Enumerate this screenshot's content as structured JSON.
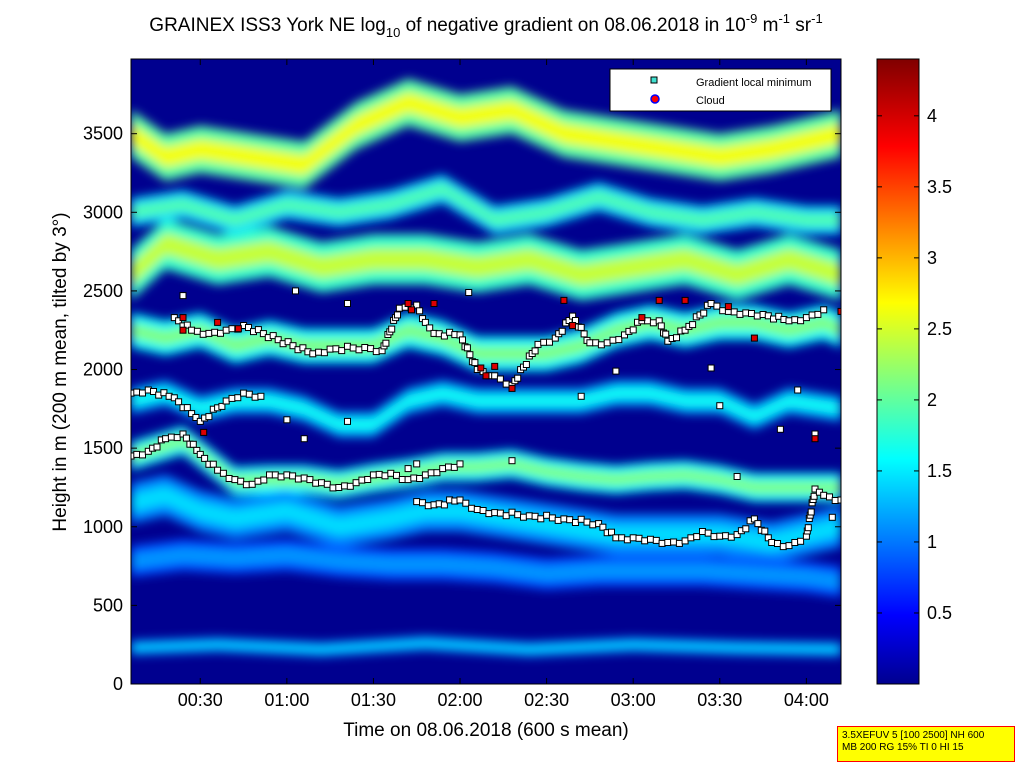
{
  "chart_data": {
    "type": "heatmap",
    "title_parts": {
      "a": "GRAINEX ISS3 York NE log",
      "a_sub": "10",
      "b": " of negative gradient on 08.06.2018 in 10",
      "b_sup": "-9",
      "c": " m",
      "c_sup": "-1",
      "d": " sr",
      "d_sup": "-1"
    },
    "xlabel": "Time on 08.06.2018 (600 s mean)",
    "ylabel": "Height in m (200 m mean, tilted by 3°)",
    "xlim_hours": [
      0.1,
      4.2
    ],
    "ylim": [
      0,
      3975
    ],
    "xticks": [
      {
        "t": 0.5,
        "label": "00:30"
      },
      {
        "t": 1.0,
        "label": "01:00"
      },
      {
        "t": 1.5,
        "label": "01:30"
      },
      {
        "t": 2.0,
        "label": "02:00"
      },
      {
        "t": 2.5,
        "label": "02:30"
      },
      {
        "t": 3.0,
        "label": "03:00"
      },
      {
        "t": 3.5,
        "label": "03:30"
      },
      {
        "t": 4.0,
        "label": "04:00"
      }
    ],
    "yticks": [
      0,
      500,
      1000,
      1500,
      2000,
      2500,
      3000,
      3500
    ],
    "colorbar": {
      "range": [
        0,
        4.4
      ],
      "ticks": [
        0.5,
        1,
        1.5,
        2,
        2.5,
        3,
        3.5,
        4
      ],
      "tick_labels": [
        "0.5",
        "1",
        "1.5",
        "2",
        "2.5",
        "3",
        "3.5",
        "4"
      ],
      "colormap": "jet"
    },
    "legend": {
      "placement": "top-right",
      "entries": [
        {
          "label": "Gradient local minimum",
          "marker": "square",
          "color": "#40e0d0"
        },
        {
          "label": "Cloud",
          "marker": "circle",
          "color": "#ff0000",
          "edge": "#0000ff"
        }
      ]
    },
    "series": [
      {
        "name": "Gradient local minimum",
        "layers": [
          {
            "points": [
              [
                0.1,
                1450
              ],
              [
                0.2,
                1480
              ],
              [
                0.3,
                1560
              ],
              [
                0.4,
                1590
              ],
              [
                0.5,
                1460
              ],
              [
                0.6,
                1360
              ],
              [
                0.7,
                1300
              ],
              [
                0.8,
                1270
              ],
              [
                0.9,
                1330
              ],
              [
                1.0,
                1330
              ],
              [
                1.1,
                1310
              ],
              [
                1.2,
                1280
              ],
              [
                1.3,
                1250
              ],
              [
                1.4,
                1280
              ],
              [
                1.5,
                1330
              ],
              [
                1.6,
                1340
              ],
              [
                1.7,
                1300
              ],
              [
                1.8,
                1330
              ],
              [
                1.9,
                1370
              ],
              [
                2.0,
                1400
              ]
            ]
          },
          {
            "points": [
              [
                1.75,
                1160
              ],
              [
                1.85,
                1140
              ],
              [
                2.0,
                1170
              ],
              [
                2.1,
                1110
              ],
              [
                2.2,
                1090
              ],
              [
                2.4,
                1070
              ],
              [
                2.6,
                1050
              ],
              [
                2.8,
                1020
              ],
              [
                2.9,
                930
              ],
              [
                3.0,
                930
              ],
              [
                3.1,
                920
              ],
              [
                3.2,
                900
              ],
              [
                3.3,
                910
              ],
              [
                3.4,
                970
              ],
              [
                3.5,
                940
              ],
              [
                3.6,
                950
              ],
              [
                3.7,
                1050
              ],
              [
                3.8,
                900
              ],
              [
                3.9,
                880
              ],
              [
                4.0,
                940
              ],
              [
                4.05,
                1240
              ],
              [
                4.1,
                1200
              ],
              [
                4.2,
                1170
              ]
            ]
          },
          {
            "points": [
              [
                0.1,
                1850
              ],
              [
                0.2,
                1870
              ],
              [
                0.35,
                1820
              ],
              [
                0.45,
                1720
              ],
              [
                0.5,
                1670
              ],
              [
                0.65,
                1800
              ],
              [
                0.75,
                1850
              ],
              [
                0.85,
                1830
              ]
            ]
          },
          {
            "points": [
              [
                0.35,
                2330
              ],
              [
                0.45,
                2250
              ],
              [
                0.55,
                2230
              ],
              [
                0.65,
                2250
              ],
              [
                0.75,
                2280
              ],
              [
                1.15,
                2100
              ],
              [
                1.25,
                2130
              ],
              [
                1.45,
                2140
              ],
              [
                1.55,
                2120
              ],
              [
                1.65,
                2390
              ],
              [
                1.75,
                2410
              ],
              [
                1.8,
                2300
              ],
              [
                1.85,
                2230
              ],
              [
                2.0,
                2220
              ],
              [
                2.1,
                2000
              ],
              [
                2.2,
                1960
              ],
              [
                2.3,
                1900
              ],
              [
                2.45,
                2160
              ],
              [
                2.55,
                2200
              ],
              [
                2.65,
                2340
              ],
              [
                2.75,
                2170
              ],
              [
                2.85,
                2170
              ],
              [
                2.95,
                2220
              ],
              [
                3.05,
                2310
              ],
              [
                3.15,
                2310
              ],
              [
                3.2,
                2180
              ],
              [
                3.3,
                2250
              ],
              [
                3.45,
                2420
              ],
              [
                3.55,
                2370
              ],
              [
                3.65,
                2360
              ],
              [
                3.75,
                2350
              ],
              [
                3.9,
                2310
              ],
              [
                4.0,
                2330
              ],
              [
                4.1,
                2380
              ]
            ]
          },
          {
            "points": [
              [
                1.7,
                1370
              ],
              [
                1.75,
                1400
              ],
              [
                2.3,
                1420
              ],
              [
                1.1,
                1560
              ],
              [
                1.0,
                1680
              ],
              [
                1.35,
                1670
              ],
              [
                2.7,
                1830
              ],
              [
                3.5,
                1770
              ],
              [
                3.85,
                1620
              ],
              [
                4.05,
                1590
              ],
              [
                3.95,
                1870
              ],
              [
                2.9,
                1990
              ],
              [
                3.45,
                2010
              ],
              [
                0.4,
                2470
              ],
              [
                1.05,
                2500
              ],
              [
                1.35,
                2420
              ],
              [
                2.05,
                2490
              ],
              [
                3.6,
                1320
              ],
              [
                4.15,
                1060
              ]
            ]
          }
        ]
      },
      {
        "name": "Cloud",
        "points": [
          [
            0.4,
            2250
          ],
          [
            0.4,
            2330
          ],
          [
            0.6,
            2300
          ],
          [
            0.72,
            2260
          ],
          [
            0.52,
            1600
          ],
          [
            1.7,
            2420
          ],
          [
            1.72,
            2380
          ],
          [
            1.85,
            2420
          ],
          [
            2.15,
            1960
          ],
          [
            2.2,
            2020
          ],
          [
            2.3,
            1880
          ],
          [
            2.6,
            2440
          ],
          [
            2.65,
            2280
          ],
          [
            3.05,
            2330
          ],
          [
            3.15,
            2440
          ],
          [
            3.3,
            2440
          ],
          [
            3.55,
            2400
          ],
          [
            4.05,
            1560
          ],
          [
            4.2,
            2370
          ],
          [
            3.7,
            2200
          ],
          [
            2.12,
            2010
          ]
        ]
      }
    ],
    "bands": [
      {
        "t": [
          0.1,
          0.3,
          0.5,
          0.8,
          1.1,
          1.4,
          1.7,
          2.0,
          2.3,
          2.6,
          2.9,
          3.2,
          3.5,
          3.8,
          4.2
        ],
        "h": [
          3500,
          3350,
          3400,
          3350,
          3300,
          3550,
          3700,
          3600,
          3650,
          3500,
          3450,
          3400,
          3350,
          3400,
          3500
        ],
        "width": 300,
        "level": 2.7
      },
      {
        "t": [
          0.1,
          0.3,
          0.6,
          0.9,
          1.2,
          1.5,
          1.8,
          2.1,
          2.4,
          2.7,
          3.0,
          3.3,
          3.6,
          3.9,
          4.2
        ],
        "h": [
          2600,
          2800,
          2700,
          2750,
          2650,
          2700,
          2700,
          2650,
          2700,
          2600,
          2650,
          2700,
          2600,
          2700,
          2600
        ],
        "width": 320,
        "level": 2.5
      },
      {
        "t": [
          0.1,
          0.4,
          0.7,
          1.0,
          1.3,
          1.6,
          1.9,
          2.2,
          2.5,
          2.8,
          3.1,
          3.4,
          3.7,
          4.0,
          4.2
        ],
        "h": [
          3000,
          3050,
          2950,
          3050,
          3000,
          3050,
          3150,
          2950,
          3000,
          3100,
          3000,
          2950,
          3000,
          2950,
          2950
        ],
        "width": 180,
        "level": 2.0
      },
      {
        "t": [
          0.1,
          0.3,
          0.5,
          0.7,
          0.9,
          1.1,
          1.3,
          1.5,
          1.7,
          1.9,
          2.1,
          2.3,
          2.5,
          2.7,
          2.9,
          3.1,
          3.3,
          3.5,
          3.7,
          3.9,
          4.1,
          4.2
        ],
        "h": [
          2250,
          2200,
          2250,
          2150,
          2200,
          2150,
          2150,
          2150,
          2250,
          2200,
          2100,
          2100,
          2100,
          2150,
          2250,
          2300,
          2250,
          2300,
          2300,
          2250,
          2300,
          2250
        ],
        "width": 220,
        "level": 2.2
      },
      {
        "t": [
          0.1,
          0.3,
          0.5,
          0.7,
          0.9,
          1.1,
          1.3,
          1.5,
          1.7,
          1.9,
          2.1,
          2.3,
          2.5,
          2.7,
          2.9,
          3.1,
          3.3,
          3.5,
          3.7,
          3.9,
          4.2
        ],
        "h": [
          1800,
          1850,
          1750,
          1800,
          1800,
          1750,
          1650,
          1650,
          1800,
          1850,
          1800,
          1800,
          1800,
          1800,
          1850,
          1850,
          1800,
          1800,
          1700,
          1800,
          1750
        ],
        "width": 160,
        "level": 1.7
      },
      {
        "t": [
          0.1,
          0.25,
          0.4,
          0.55,
          0.7,
          0.9,
          1.1,
          1.3,
          1.5,
          1.7,
          1.9,
          2.1,
          2.3,
          2.5,
          2.7,
          2.9,
          3.1,
          3.3,
          3.5,
          3.7,
          3.9,
          4.1,
          4.2
        ],
        "h": [
          1450,
          1500,
          1550,
          1420,
          1290,
          1300,
          1300,
          1270,
          1310,
          1340,
          1380,
          1380,
          1400,
          1350,
          1320,
          1300,
          1320,
          1330,
          1300,
          1250,
          1250,
          1250,
          1250
        ],
        "width": 180,
        "level": 2.2
      },
      {
        "t": [
          0.1,
          0.3,
          0.5,
          0.7,
          1.0,
          1.3,
          1.6,
          1.8,
          2.0,
          2.3,
          2.6,
          2.9,
          3.2,
          3.5,
          3.8,
          4.2
        ],
        "h": [
          1150,
          1200,
          1100,
          1050,
          1100,
          1000,
          1050,
          1100,
          1100,
          1050,
          1000,
          950,
          950,
          950,
          900,
          1000
        ],
        "width": 260,
        "level": 1.5
      },
      {
        "t": [
          0.1,
          0.4,
          0.7,
          1.0,
          1.3,
          1.6,
          1.9,
          2.2,
          2.5,
          2.8,
          3.1,
          3.4,
          3.7,
          4.0,
          4.2
        ],
        "h": [
          780,
          820,
          800,
          820,
          780,
          760,
          760,
          740,
          700,
          720,
          720,
          720,
          700,
          680,
          650
        ],
        "width": 200,
        "level": 1.2
      },
      {
        "t": [
          0.1,
          0.6,
          1.2,
          1.8,
          2.4,
          3.0,
          3.6,
          4.2
        ],
        "h": [
          230,
          250,
          220,
          260,
          220,
          250,
          230,
          220
        ],
        "width": 90,
        "level": 1.5
      }
    ]
  },
  "info_box": {
    "line1": "3.5XEFUV 5 [100 2500] NH 600",
    "line2": "MB 200 RG 15% TI 0 HI 15"
  }
}
